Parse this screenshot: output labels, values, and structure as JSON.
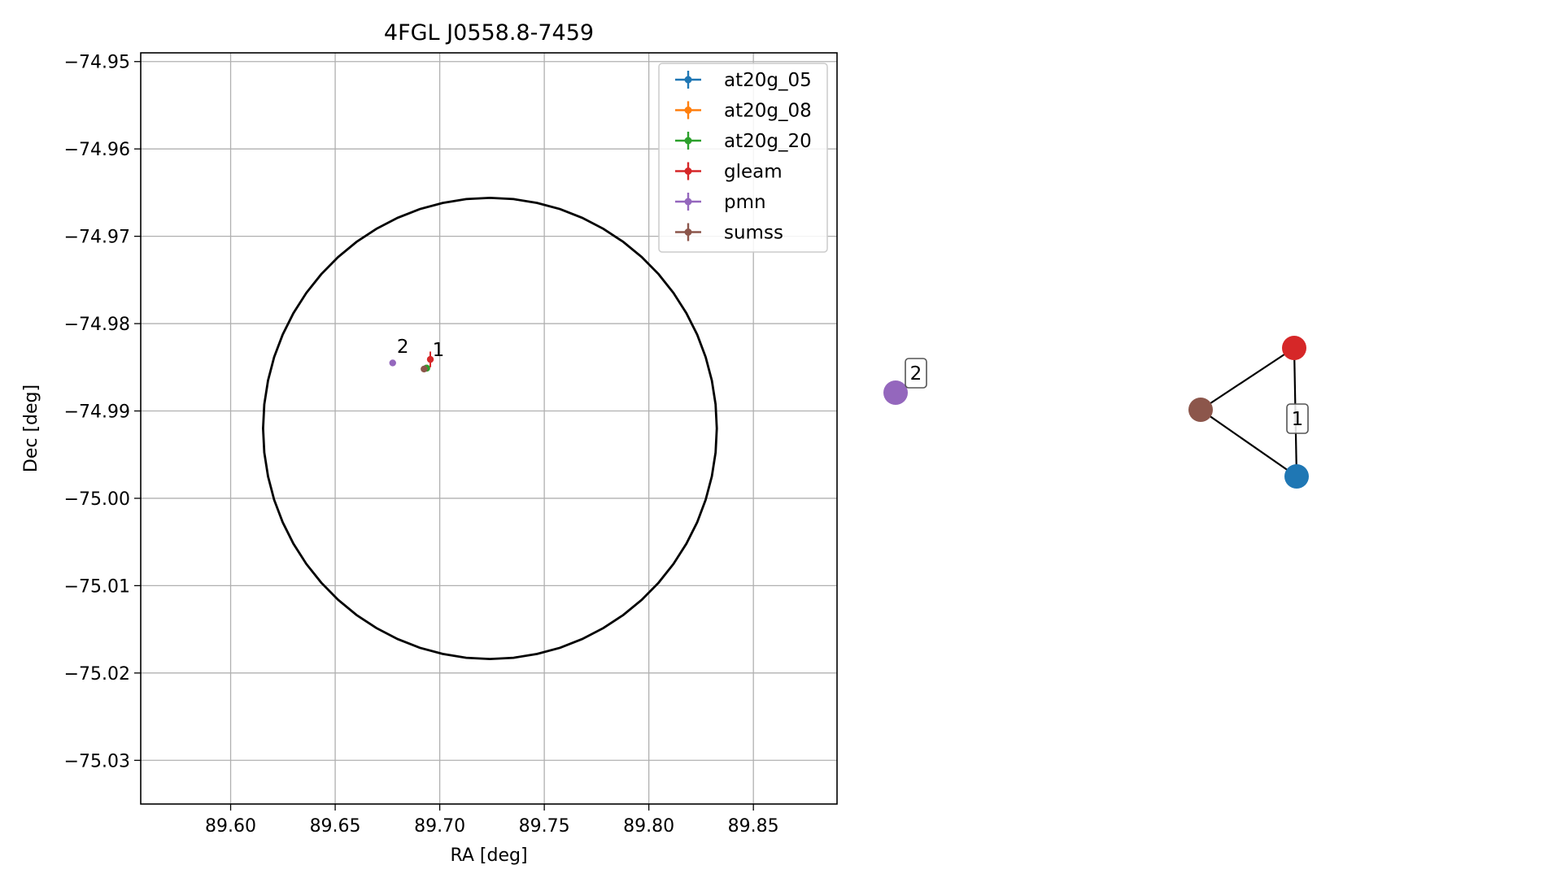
{
  "chart_data": [
    {
      "type": "scatter",
      "title": "4FGL J0558.8-7459",
      "xlabel": "RA [deg]",
      "ylabel": "Dec [deg]",
      "xlim": [
        89.557,
        89.89
      ],
      "ylim": [
        -75.035,
        -74.949
      ],
      "xticks": [
        89.6,
        89.65,
        89.7,
        89.75,
        89.8,
        89.85
      ],
      "yticks": [
        -74.95,
        -74.96,
        -74.97,
        -74.98,
        -74.99,
        -75.0,
        -75.01,
        -75.02,
        -75.03
      ],
      "grid": true,
      "legend_position": "upper-right",
      "ellipse": {
        "center": [
          89.724,
          -74.992
        ],
        "semi_axis_ra": 0.1085,
        "semi_axis_dec": 0.0264,
        "color": "#000000"
      },
      "series": [
        {
          "name": "at20g_05",
          "color": "#1f77b4",
          "points": [
            {
              "ra": 89.6935,
              "dec": -74.9851,
              "err_ra": 0.0005,
              "err_dec": 0.0002
            }
          ]
        },
        {
          "name": "at20g_08",
          "color": "#ff7f0e",
          "points": [
            {
              "ra": 89.6937,
              "dec": -74.9851,
              "err_ra": 0.0005,
              "err_dec": 0.0002
            }
          ]
        },
        {
          "name": "at20g_20",
          "color": "#2ca02c",
          "points": [
            {
              "ra": 89.6938,
              "dec": -74.9851,
              "err_ra": 0.0005,
              "err_dec": 0.0002
            }
          ]
        },
        {
          "name": "gleam",
          "color": "#d62728",
          "points": [
            {
              "ra": 89.6955,
              "dec": -74.9841,
              "err_ra": 0.0003,
              "err_dec": 0.0009
            }
          ]
        },
        {
          "name": "pmn",
          "color": "#9467bd",
          "points": [
            {
              "ra": 89.6775,
              "dec": -74.9845,
              "err_ra": 0.0005,
              "err_dec": 0.0002
            }
          ]
        },
        {
          "name": "sumss",
          "color": "#8c564b",
          "points": [
            {
              "ra": 89.6925,
              "dec": -74.9852,
              "err_ra": 0.0008,
              "err_dec": 0.0003
            }
          ]
        }
      ],
      "annotations": [
        {
          "text": "2",
          "ra": 89.6795,
          "dec": -74.9837
        },
        {
          "text": "1",
          "ra": 89.6965,
          "dec": -74.9841
        }
      ]
    },
    {
      "type": "network",
      "nodes": [
        {
          "id": "pmn",
          "color": "#9467bd"
        },
        {
          "id": "gleam",
          "color": "#d62728"
        },
        {
          "id": "sumss",
          "color": "#8c564b"
        },
        {
          "id": "at20g",
          "color": "#1f77b4"
        }
      ],
      "edges": [
        [
          "sumss",
          "gleam"
        ],
        [
          "sumss",
          "at20g"
        ],
        [
          "gleam",
          "at20g"
        ]
      ],
      "components": [
        {
          "label": "2",
          "nodes": [
            "pmn"
          ]
        },
        {
          "label": "1",
          "nodes": [
            "gleam",
            "sumss",
            "at20g"
          ]
        }
      ]
    }
  ]
}
